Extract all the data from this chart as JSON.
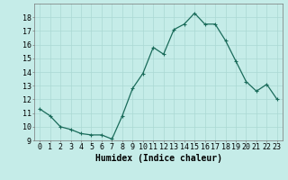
{
  "x": [
    0,
    1,
    2,
    3,
    4,
    5,
    6,
    7,
    8,
    9,
    10,
    11,
    12,
    13,
    14,
    15,
    16,
    17,
    18,
    19,
    20,
    21,
    22,
    23
  ],
  "y": [
    11.3,
    10.8,
    10.0,
    9.8,
    9.5,
    9.4,
    9.4,
    9.1,
    10.8,
    12.8,
    13.9,
    15.8,
    15.3,
    17.1,
    17.5,
    18.3,
    17.5,
    17.5,
    16.3,
    14.8,
    13.3,
    12.6,
    13.1,
    12.0
  ],
  "line_color": "#1a6b5a",
  "marker": "+",
  "marker_size": 3,
  "marker_color": "#1a6b5a",
  "bg_color": "#c5ece8",
  "grid_color": "#aad8d3",
  "xlabel": "Humidex (Indice chaleur)",
  "xlim": [
    -0.5,
    23.5
  ],
  "ylim": [
    9,
    19
  ],
  "yticks": [
    9,
    10,
    11,
    12,
    13,
    14,
    15,
    16,
    17,
    18
  ],
  "xticks": [
    0,
    1,
    2,
    3,
    4,
    5,
    6,
    7,
    8,
    9,
    10,
    11,
    12,
    13,
    14,
    15,
    16,
    17,
    18,
    19,
    20,
    21,
    22,
    23
  ],
  "xtick_labels": [
    "0",
    "1",
    "2",
    "3",
    "4",
    "5",
    "6",
    "7",
    "8",
    "9",
    "10",
    "11",
    "12",
    "13",
    "14",
    "15",
    "16",
    "17",
    "18",
    "19",
    "20",
    "21",
    "22",
    "23"
  ],
  "xlabel_fontsize": 7,
  "tick_fontsize": 6,
  "linewidth": 0.9
}
